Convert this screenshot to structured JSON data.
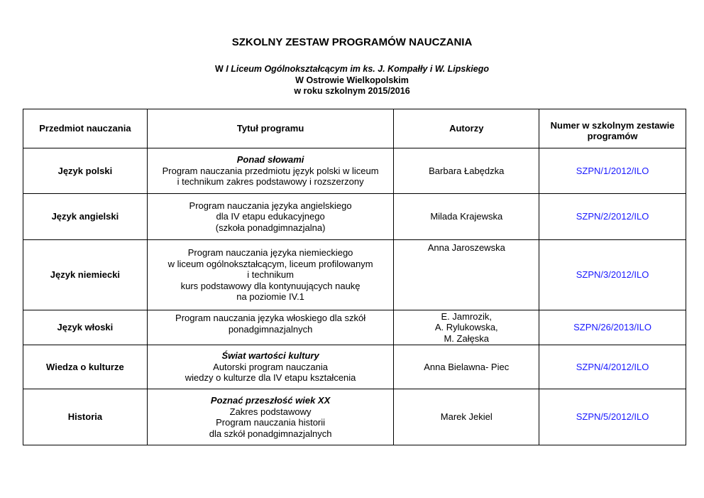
{
  "document": {
    "title": "SZKOLNY ZESTAW PROGRAMÓW NAUCZANIA",
    "subtitle": {
      "line1_prefix": "W ",
      "line1_italic": "I Liceum Ogólnokształcącym im ks. J. Kompałły i W. Lipskiego",
      "line2": "W Ostrowie Wielkopolskim",
      "line3": "w roku szkolnym 2015/2016"
    },
    "table": {
      "headers": [
        "Przedmiot nauczania",
        "Tytuł programu",
        "Autorzy",
        "Numer w szkolnym zestawie programów"
      ],
      "rows": [
        {
          "subject": "Język polski",
          "title_heading": "Ponad słowami",
          "title_lines": [
            "Program nauczania przedmiotu język polski w liceum",
            "i technikum zakres podstawowy i rozszerzony"
          ],
          "authors": [
            "Barbara Łabędzka"
          ],
          "number": "SZPN/1/2012/ILO"
        },
        {
          "subject": "Język angielski",
          "title_heading": "",
          "title_lines": [
            "Program nauczania języka angielskiego",
            "dla IV etapu edukacyjnego",
            "(szkoła ponadgimnazjalna)"
          ],
          "authors": [
            "Milada Krajewska"
          ],
          "number": "SZPN/2/2012/ILO"
        },
        {
          "subject": "Język niemiecki",
          "title_heading": "",
          "title_lines": [
            "Program nauczania języka niemieckiego",
            "w liceum ogólnokształcącym, liceum profilowanym",
            "i technikum",
            "kurs podstawowy dla kontynuujących naukę",
            "na poziomie IV.1"
          ],
          "authors": [
            "Anna Jaroszewska"
          ],
          "number": "SZPN/3/2012/ILO"
        },
        {
          "subject": "Język włoski",
          "title_heading": "",
          "title_lines": [
            "Program nauczania języka włoskiego dla szkół",
            "ponadgimnazjalnych"
          ],
          "authors": [
            "E. Jamrozik,",
            "A. Rylukowska,",
            "M. Załęska"
          ],
          "number": "SZPN/26/2013/ILO"
        },
        {
          "subject": "Wiedza o kulturze",
          "title_heading": "Świat wartości kultury",
          "title_lines": [
            "Autorski program nauczania",
            "wiedzy o kulturze dla IV etapu kształcenia"
          ],
          "authors": [
            "Anna Bielawna- Piec"
          ],
          "number": "SZPN/4/2012/ILO"
        },
        {
          "subject": "Historia",
          "title_heading": "Poznać przeszłość wiek XX",
          "title_lines": [
            "Zakres podstawowy",
            "Program nauczania historii",
            "dla szkół ponadgimnazjalnych"
          ],
          "authors": [
            "Marek Jekiel"
          ],
          "number": "SZPN/5/2012/ILO"
        }
      ]
    },
    "colors": {
      "number_link": "#1a1aff"
    }
  }
}
